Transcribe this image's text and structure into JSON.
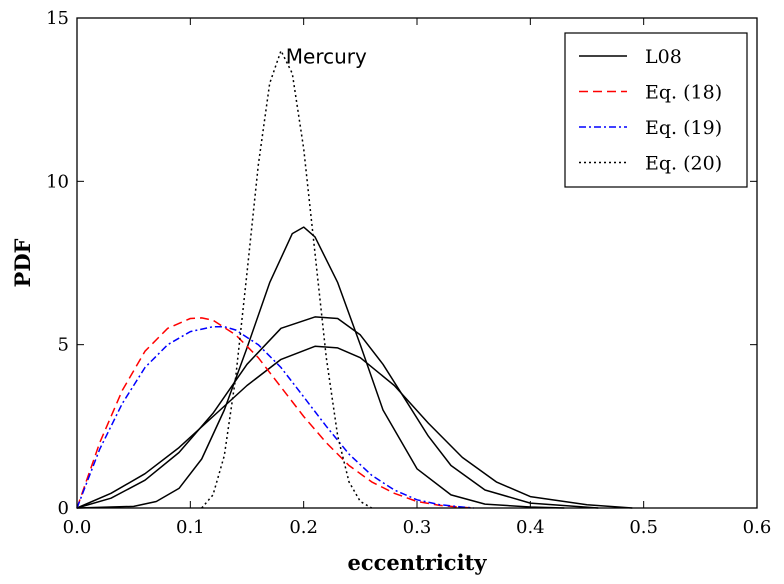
{
  "chart_data": {
    "type": "line",
    "title": "",
    "xlabel": "eccentricity",
    "ylabel": "PDF",
    "xlim": [
      0.0,
      0.6
    ],
    "ylim": [
      0,
      15
    ],
    "xticks": [
      "0.0",
      "0.1",
      "0.2",
      "0.3",
      "0.4",
      "0.5",
      "0.6"
    ],
    "yticks": [
      "0",
      "5",
      "10",
      "15"
    ],
    "grid": false,
    "legend_position": "top-right",
    "annotations": [
      {
        "text": "Mercury",
        "x": 0.22,
        "y": 13.6
      }
    ],
    "series": [
      {
        "name": "L08",
        "color": "#000000",
        "dash": "solid",
        "x": [
          0.0,
          0.05,
          0.07,
          0.09,
          0.11,
          0.13,
          0.15,
          0.17,
          0.19,
          0.2,
          0.21,
          0.23,
          0.25,
          0.27,
          0.3,
          0.33,
          0.36,
          0.4,
          0.43
        ],
        "y": [
          0.0,
          0.05,
          0.2,
          0.6,
          1.5,
          3.0,
          4.9,
          6.9,
          8.4,
          8.6,
          8.3,
          6.9,
          5.0,
          3.0,
          1.2,
          0.4,
          0.12,
          0.03,
          0.0
        ]
      },
      {
        "name": "",
        "color": "#000000",
        "dash": "solid",
        "x": [
          0.0,
          0.03,
          0.06,
          0.09,
          0.12,
          0.15,
          0.18,
          0.21,
          0.23,
          0.25,
          0.27,
          0.29,
          0.31,
          0.33,
          0.36,
          0.4,
          0.46
        ],
        "y": [
          0.0,
          0.3,
          0.85,
          1.7,
          2.9,
          4.4,
          5.5,
          5.85,
          5.8,
          5.3,
          4.4,
          3.3,
          2.2,
          1.3,
          0.55,
          0.15,
          0.0
        ]
      },
      {
        "name": "",
        "color": "#000000",
        "dash": "solid",
        "x": [
          0.0,
          0.03,
          0.06,
          0.09,
          0.12,
          0.15,
          0.18,
          0.21,
          0.23,
          0.25,
          0.28,
          0.31,
          0.34,
          0.37,
          0.4,
          0.45,
          0.49
        ],
        "y": [
          0.0,
          0.45,
          1.05,
          1.85,
          2.8,
          3.75,
          4.55,
          4.95,
          4.9,
          4.6,
          3.75,
          2.6,
          1.55,
          0.8,
          0.35,
          0.1,
          0.0
        ]
      },
      {
        "name": "Eq. (18)",
        "color": "#ff0000",
        "dash": "dashed",
        "x": [
          0.0,
          0.02,
          0.04,
          0.06,
          0.08,
          0.1,
          0.11,
          0.12,
          0.14,
          0.16,
          0.18,
          0.2,
          0.22,
          0.24,
          0.26,
          0.28,
          0.3,
          0.32,
          0.34,
          0.35
        ],
        "y": [
          0.0,
          2.0,
          3.6,
          4.8,
          5.5,
          5.8,
          5.82,
          5.75,
          5.3,
          4.6,
          3.7,
          2.8,
          2.0,
          1.3,
          0.8,
          0.45,
          0.2,
          0.08,
          0.02,
          0.0
        ]
      },
      {
        "name": "Eq. (19)",
        "color": "#0000ff",
        "dash": "dashdot",
        "x": [
          0.0,
          0.02,
          0.04,
          0.06,
          0.08,
          0.1,
          0.12,
          0.13,
          0.14,
          0.16,
          0.18,
          0.2,
          0.22,
          0.24,
          0.26,
          0.28,
          0.3,
          0.32,
          0.34,
          0.35
        ],
        "y": [
          0.0,
          1.8,
          3.2,
          4.3,
          5.0,
          5.4,
          5.55,
          5.55,
          5.45,
          5.0,
          4.3,
          3.4,
          2.5,
          1.65,
          1.0,
          0.55,
          0.25,
          0.1,
          0.03,
          0.0
        ]
      },
      {
        "name": "Eq. (20)",
        "color": "#000000",
        "dash": "dotted",
        "x": [
          0.11,
          0.12,
          0.13,
          0.14,
          0.15,
          0.16,
          0.17,
          0.18,
          0.19,
          0.2,
          0.21,
          0.22,
          0.23,
          0.24,
          0.25,
          0.26
        ],
        "y": [
          0.0,
          0.4,
          1.6,
          4.0,
          7.2,
          10.5,
          13.0,
          14.0,
          13.3,
          11.0,
          7.8,
          4.6,
          2.2,
          0.8,
          0.2,
          0.0
        ]
      }
    ]
  }
}
